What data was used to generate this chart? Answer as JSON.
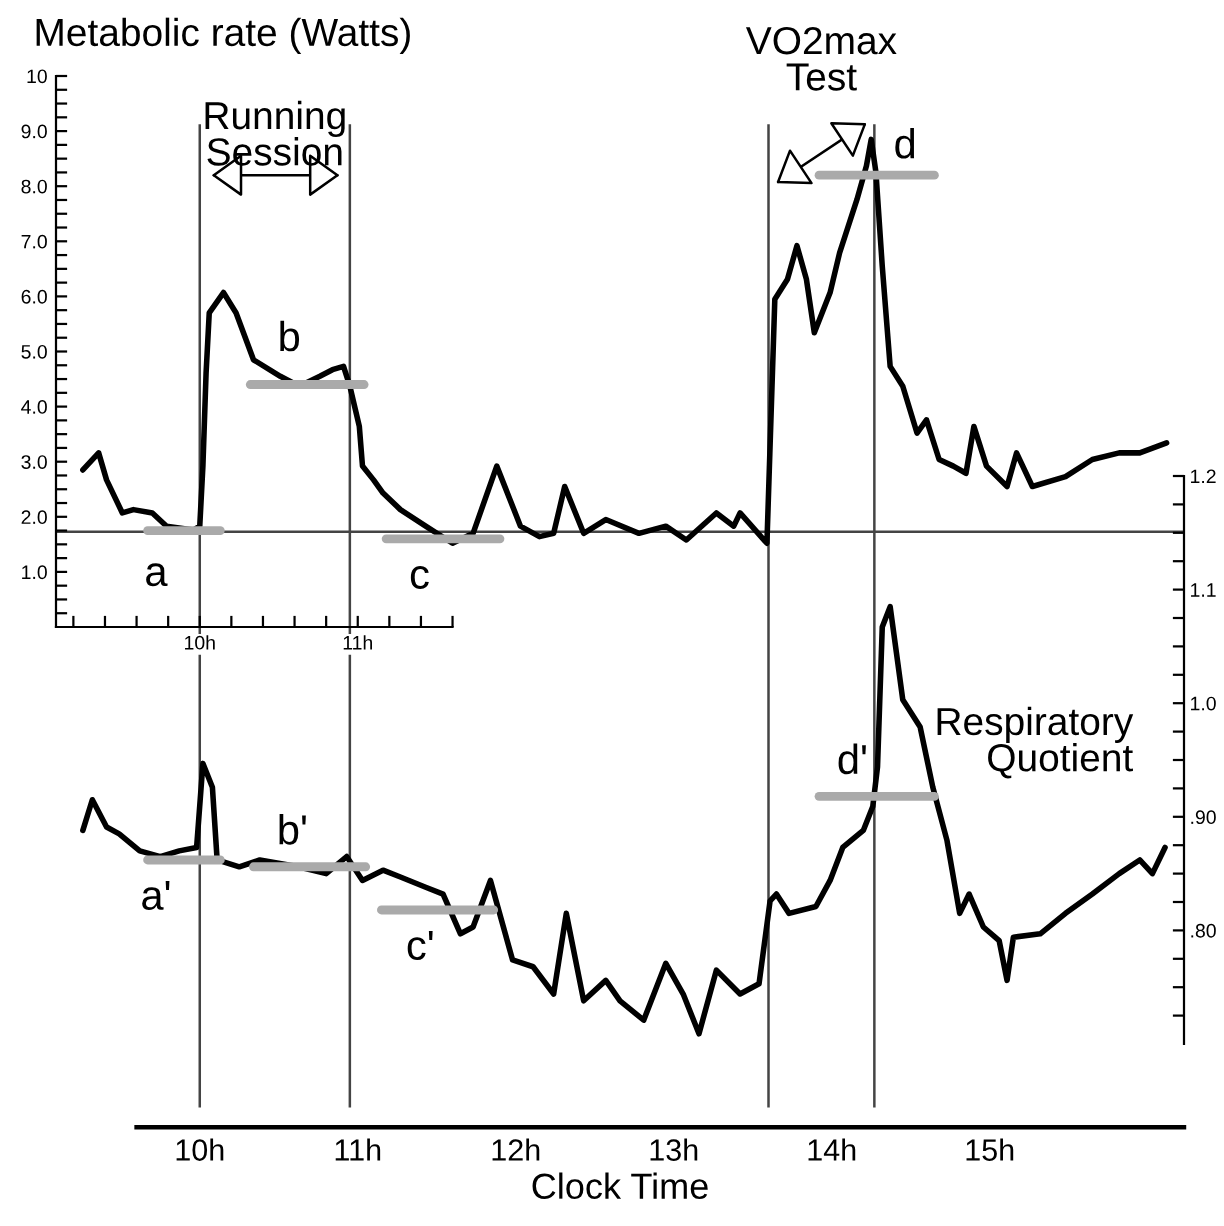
{
  "chart_data": [
    {
      "type": "line",
      "ylabel": "Metabolic rate (Watts)",
      "grid": false,
      "legend": false,
      "marker": "none",
      "line_style": "solid",
      "xlim": [
        9.09,
        16.23
      ],
      "xticks": [
        {
          "value": 9.2,
          "label": null
        },
        {
          "value": 9.4,
          "label": null
        },
        {
          "value": 9.6,
          "label": null
        },
        {
          "value": 9.8,
          "label": null
        },
        {
          "value": 10,
          "label": "10h"
        },
        {
          "value": 10.2,
          "label": null
        },
        {
          "value": 10.4,
          "label": null
        },
        {
          "value": 10.6,
          "label": null
        },
        {
          "value": 10.8,
          "label": null
        },
        {
          "value": 11,
          "label": "11h"
        },
        {
          "value": 11.2,
          "label": null
        },
        {
          "value": 11.4,
          "label": null
        },
        {
          "value": 11.6,
          "label": null
        }
      ],
      "ylim": [
        0,
        10
      ],
      "yticks": [
        {
          "value": 0.25,
          "label": null
        },
        {
          "value": 0.5,
          "label": null
        },
        {
          "value": 0.75,
          "label": null
        },
        {
          "value": 1,
          "label": "1.0"
        },
        {
          "value": 1.25,
          "label": null
        },
        {
          "value": 1.5,
          "label": null
        },
        {
          "value": 1.75,
          "label": null
        },
        {
          "value": 2,
          "label": "2.0"
        },
        {
          "value": 2.25,
          "label": null
        },
        {
          "value": 2.5,
          "label": null
        },
        {
          "value": 2.75,
          "label": null
        },
        {
          "value": 3,
          "label": "3.0"
        },
        {
          "value": 3.25,
          "label": null
        },
        {
          "value": 3.5,
          "label": null
        },
        {
          "value": 3.75,
          "label": null
        },
        {
          "value": 4,
          "label": "4.0"
        },
        {
          "value": 4.25,
          "label": null
        },
        {
          "value": 4.5,
          "label": null
        },
        {
          "value": 4.75,
          "label": null
        },
        {
          "value": 5,
          "label": "5.0"
        },
        {
          "value": 5.25,
          "label": null
        },
        {
          "value": 5.5,
          "label": null
        },
        {
          "value": 5.75,
          "label": null
        },
        {
          "value": 6,
          "label": "6.0"
        },
        {
          "value": 6.25,
          "label": null
        },
        {
          "value": 6.5,
          "label": null
        },
        {
          "value": 6.75,
          "label": null
        },
        {
          "value": 7,
          "label": "7.0"
        },
        {
          "value": 7.25,
          "label": null
        },
        {
          "value": 7.5,
          "label": null
        },
        {
          "value": 7.75,
          "label": null
        },
        {
          "value": 8,
          "label": "8.0"
        },
        {
          "value": 8.25,
          "label": null
        },
        {
          "value": 8.5,
          "label": null
        },
        {
          "value": 8.75,
          "label": null
        },
        {
          "value": 9,
          "label": "9.0"
        },
        {
          "value": 9.25,
          "label": null
        },
        {
          "value": 9.5,
          "label": null
        },
        {
          "value": 9.75,
          "label": null
        },
        10
      ],
      "series": [
        {
          "color": "#000000",
          "x": [
            9.26,
            9.36,
            9.41,
            9.51,
            9.58,
            9.7,
            9.79,
            9.96,
            10.0,
            10.02,
            10.04,
            10.06,
            10.15,
            10.23,
            10.34,
            10.51,
            10.63,
            10.76,
            10.84,
            10.91,
            10.95,
            11.01,
            11.03,
            11.1,
            11.16,
            11.27,
            11.43,
            11.6,
            11.73,
            11.88,
            12.03,
            12.15,
            12.24,
            12.31,
            12.43,
            12.57,
            12.78,
            12.95,
            13.08,
            13.27,
            13.38,
            13.42,
            13.59,
            13.64,
            13.72,
            13.78,
            13.84,
            13.89,
            13.99,
            14.05,
            14.16,
            14.22,
            14.25,
            14.28,
            14.32,
            14.37,
            14.45,
            14.54,
            14.6,
            14.68,
            14.77,
            14.85,
            14.9,
            14.98,
            15.11,
            15.17,
            15.27,
            15.48,
            15.65,
            15.82,
            15.95,
            16.12
          ],
          "values": [
            2.85,
            3.16,
            2.67,
            2.07,
            2.13,
            2.07,
            1.83,
            1.76,
            1.83,
            2.93,
            4.61,
            5.7,
            6.07,
            5.7,
            4.85,
            4.55,
            4.37,
            4.55,
            4.67,
            4.73,
            4.37,
            3.64,
            2.92,
            2.67,
            2.43,
            2.13,
            1.83,
            1.52,
            1.7,
            2.92,
            1.83,
            1.64,
            1.7,
            2.55,
            1.7,
            1.95,
            1.7,
            1.83,
            1.58,
            2.07,
            1.83,
            2.07,
            1.52,
            5.95,
            6.31,
            6.92,
            6.31,
            5.34,
            6.07,
            6.79,
            7.76,
            8.37,
            8.85,
            8.25,
            6.55,
            4.73,
            4.37,
            3.52,
            3.76,
            3.04,
            2.92,
            2.79,
            3.64,
            2.92,
            2.55,
            3.16,
            2.55,
            2.73,
            3.04,
            3.16,
            3.16,
            3.34
          ]
        },
        {
          "color": "#aaaaaa",
          "x": [
            9.67,
            10.13
          ],
          "values": [
            1.75,
            1.75
          ]
        },
        {
          "color": "#aaaaaa",
          "x": [
            10.32,
            11.04
          ],
          "values": [
            4.4,
            4.4
          ]
        },
        {
          "color": "#aaaaaa",
          "x": [
            11.18,
            11.9
          ],
          "values": [
            1.6,
            1.6
          ]
        },
        {
          "color": "#aaaaaa",
          "x": [
            13.92,
            14.65
          ],
          "values": [
            8.2,
            8.2
          ]
        }
      ],
      "ref_lines": [
        {
          "axis": "y",
          "value": 1.73,
          "color": "#444444"
        },
        {
          "axis": "x",
          "value": 10.0,
          "color": "#444444"
        },
        {
          "axis": "x",
          "value": 10.95,
          "color": "#444444"
        },
        {
          "axis": "x",
          "value": 13.6,
          "color": "#444444"
        },
        {
          "axis": "x",
          "value": 14.27,
          "color": "#444444"
        }
      ],
      "annotations": [
        "a",
        "b",
        "c",
        "d",
        "Running\nSession",
        "VO2max\nTest"
      ]
    },
    {
      "type": "line",
      "xlabel": "Clock Time",
      "y2label": "Respiratory\nQuotient",
      "grid": false,
      "legend": false,
      "marker": "none",
      "line_style": "solid",
      "xlim": [
        9.09,
        16.23
      ],
      "xticks": [
        {
          "value": 10,
          "label": "10h"
        },
        {
          "value": 11,
          "label": "11h"
        },
        {
          "value": 12,
          "label": "12h"
        },
        {
          "value": 13,
          "label": "13h"
        },
        {
          "value": 14,
          "label": "14h"
        },
        {
          "value": 15,
          "label": "15h"
        }
      ],
      "y2lim": [
        0.7,
        1.2
      ],
      "y2ticks": [
        {
          "value": 0.725,
          "label": null
        },
        {
          "value": 0.75,
          "label": null
        },
        {
          "value": 0.775,
          "label": null
        },
        {
          "value": 0.8,
          "label": ".80"
        },
        {
          "value": 0.825,
          "label": null
        },
        {
          "value": 0.85,
          "label": null
        },
        {
          "value": 0.875,
          "label": null
        },
        {
          "value": 0.9,
          "label": ".90"
        },
        {
          "value": 0.925,
          "label": null
        },
        {
          "value": 0.95,
          "label": null
        },
        {
          "value": 0.975,
          "label": null
        },
        {
          "value": 1.0,
          "label": "1.0"
        },
        {
          "value": 1.025,
          "label": null
        },
        {
          "value": 1.05,
          "label": null
        },
        {
          "value": 1.075,
          "label": null
        },
        1.1,
        {
          "value": 1.125,
          "label": null
        },
        {
          "value": 1.15,
          "label": null
        },
        {
          "value": 1.175,
          "label": null
        },
        1.2
      ],
      "series": [
        {
          "axis": "y2",
          "color": "#000000",
          "x": [
            9.26,
            9.32,
            9.41,
            9.49,
            9.62,
            9.75,
            9.87,
            9.98,
            10.02,
            10.08,
            10.11,
            10.25,
            10.38,
            10.59,
            10.8,
            10.93,
            11.03,
            11.16,
            11.27,
            11.43,
            11.54,
            11.65,
            11.73,
            11.84,
            11.98,
            12.11,
            12.24,
            12.32,
            12.43,
            12.57,
            12.66,
            12.81,
            12.95,
            13.06,
            13.16,
            13.27,
            13.42,
            13.54,
            13.61,
            13.65,
            13.73,
            13.9,
            13.99,
            14.07,
            14.2,
            14.26,
            14.29,
            14.32,
            14.37,
            14.41,
            14.45,
            14.56,
            14.64,
            14.73,
            14.81,
            14.87,
            14.96,
            15.06,
            15.11,
            15.15,
            15.32,
            15.48,
            15.65,
            15.82,
            15.95,
            16.03,
            16.11
          ],
          "values": [
            0.888,
            0.915,
            0.891,
            0.885,
            0.87,
            0.865,
            0.87,
            0.873,
            0.947,
            0.926,
            0.862,
            0.856,
            0.862,
            0.857,
            0.85,
            0.865,
            0.844,
            0.853,
            0.847,
            0.838,
            0.832,
            0.797,
            0.803,
            0.844,
            0.774,
            0.768,
            0.744,
            0.815,
            0.738,
            0.756,
            0.738,
            0.721,
            0.771,
            0.744,
            0.709,
            0.765,
            0.744,
            0.753,
            0.826,
            0.832,
            0.815,
            0.821,
            0.844,
            0.873,
            0.888,
            0.909,
            0.944,
            1.067,
            1.085,
            1.044,
            1.003,
            0.979,
            0.926,
            0.879,
            0.815,
            0.832,
            0.803,
            0.791,
            0.756,
            0.794,
            0.797,
            0.815,
            0.832,
            0.85,
            0.862,
            0.85,
            0.873
          ]
        },
        {
          "axis": "y2",
          "color": "#aaaaaa",
          "x": [
            9.67,
            10.13
          ],
          "values": [
            0.862,
            0.862
          ]
        },
        {
          "axis": "y2",
          "color": "#aaaaaa",
          "x": [
            10.34,
            11.05
          ],
          "values": [
            0.856,
            0.856
          ]
        },
        {
          "axis": "y2",
          "color": "#aaaaaa",
          "x": [
            11.15,
            11.86
          ],
          "values": [
            0.818,
            0.818
          ]
        },
        {
          "axis": "y2",
          "color": "#aaaaaa",
          "x": [
            13.92,
            14.65
          ],
          "values": [
            0.918,
            0.918
          ]
        }
      ],
      "annotations": [
        "a'",
        "b'",
        "c'",
        "d'"
      ]
    }
  ]
}
